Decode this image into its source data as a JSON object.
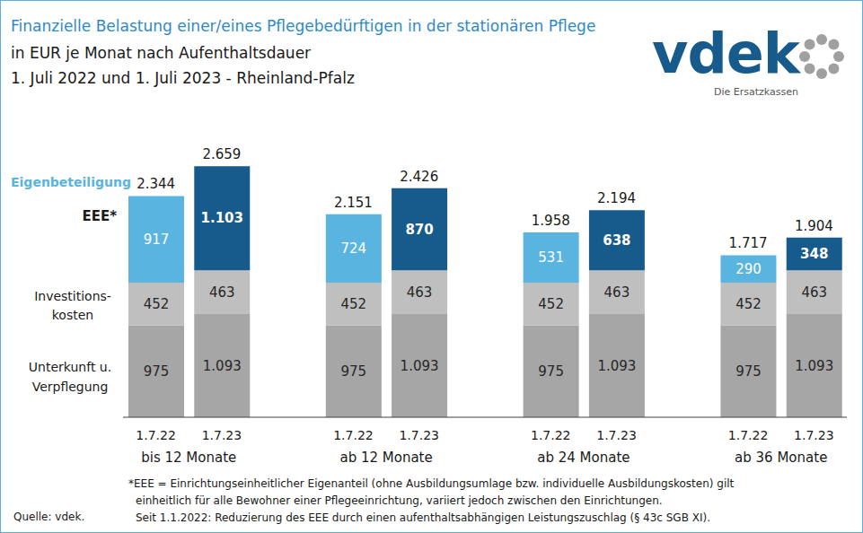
{
  "chart_data": {
    "type": "bar",
    "title": "Finanzielle Belastung einer/eines Pflegebedürftigen in der stationären Pflege",
    "subtitle": [
      "in EUR je Monat nach Aufenthaltsdauer",
      "1. Juli 2022 und 1. Juli 2023 - Rheinland-Pfalz"
    ],
    "brand": "vdek",
    "brand_sub": "Die Ersatzkassen",
    "categories": [
      "1.7.22",
      "1.7.23",
      "1.7.22",
      "1.7.23",
      "1.7.22",
      "1.7.23",
      "1.7.22",
      "1.7.23"
    ],
    "groups": [
      "bis 12 Monate",
      "ab 12 Monate",
      "ab 24 Monate",
      "ab 36 Monate"
    ],
    "series": [
      {
        "name": "Unterkunft u.\nVerpflegung",
        "color": "#a6a6a6",
        "values": [
          975,
          1093,
          975,
          1093,
          975,
          1093,
          975,
          1093
        ],
        "value_labels": [
          "975",
          "1.093",
          "975",
          "1.093",
          "975",
          "1.093",
          "975",
          "1.093"
        ]
      },
      {
        "name": "Investitions-\nkosten",
        "color": "#bfbfbf",
        "values": [
          452,
          463,
          452,
          463,
          452,
          463,
          452,
          463
        ],
        "value_labels": [
          "452",
          "463",
          "452",
          "463",
          "452",
          "463",
          "452",
          "463"
        ]
      },
      {
        "name": "EEE*",
        "colors": [
          "#5ab4e0",
          "#175a8c",
          "#5ab4e0",
          "#175a8c",
          "#5ab4e0",
          "#175a8c",
          "#5ab4e0",
          "#175a8c"
        ],
        "values": [
          917,
          1103,
          724,
          870,
          531,
          638,
          290,
          348
        ],
        "value_labels": [
          "917",
          "1.103",
          "724",
          "870",
          "531",
          "638",
          "290",
          "348"
        ]
      }
    ],
    "total_name": "Eigenbeteiligung",
    "totals": [
      2344,
      2659,
      2151,
      2426,
      1958,
      2194,
      1717,
      1904
    ],
    "total_labels": [
      "2.344",
      "2.659",
      "2.151",
      "2.426",
      "1.958",
      "2.194",
      "1.717",
      "1.904"
    ],
    "ylim": [
      0,
      2700
    ],
    "stacked": true,
    "data_labels": true,
    "tick_labels": "x",
    "grid": false,
    "footnotes": [
      "*EEE = Einrichtungseinheitlicher  Eigenanteil (ohne Ausbildungsumlage bzw. individuelle Ausbildungskosten) gilt",
      "einheitlich für alle Bewohner einer Pflegeeinrichtung, variiert jedoch zwischen den Einrichtungen.",
      "Seit 1.1.2022: Reduzierung des EEE durch einen aufenthaltsabhängigen Leistungszuschlag (§ 43c SGB XI)."
    ],
    "source": "Quelle: vdek."
  }
}
